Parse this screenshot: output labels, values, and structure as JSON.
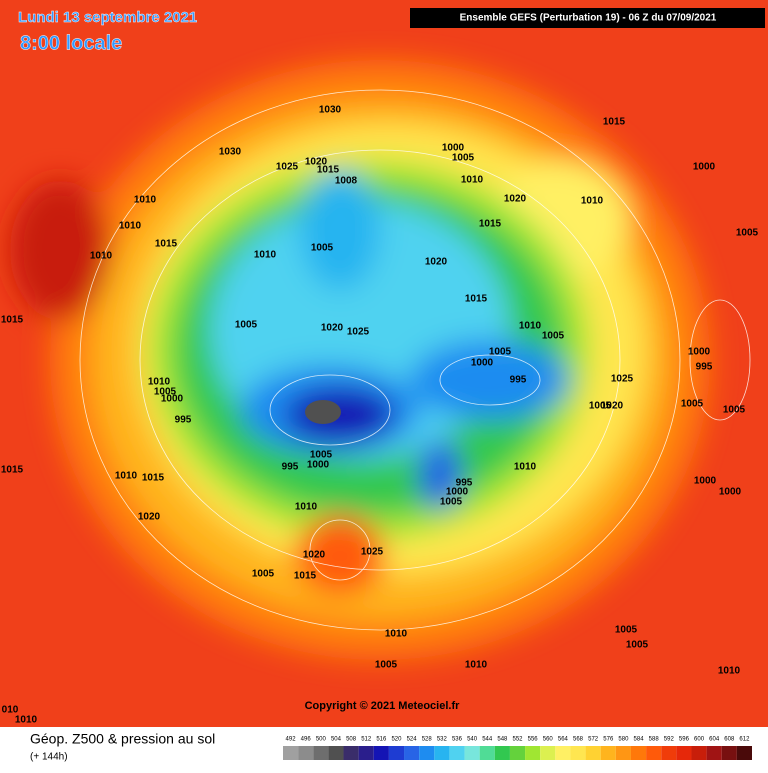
{
  "header": {
    "date": "Lundi 13 septembre 2021",
    "time": "8:00 locale",
    "model": "Ensemble GEFS  (Perturbation 19)  -  06 Z du 07/09/2021"
  },
  "copyright": "Copyright © 2021 Meteociel.fr",
  "footer": {
    "title": "Géop. Z500 & pression au sol",
    "lead": "(+ 144h)"
  },
  "scale": {
    "values": [
      492,
      496,
      500,
      504,
      508,
      512,
      516,
      520,
      524,
      528,
      532,
      536,
      540,
      544,
      548,
      552,
      556,
      560,
      564,
      568,
      572,
      576,
      580,
      584,
      588,
      592,
      596,
      600,
      604,
      608,
      612
    ],
    "colors": [
      "#a0a0a0",
      "#8c8c8c",
      "#6e6e6e",
      "#505050",
      "#3a2d6a",
      "#2a1e8c",
      "#1414b4",
      "#1e3cd2",
      "#2864e6",
      "#1e8cf0",
      "#28b4f0",
      "#50d2f0",
      "#78e6dc",
      "#50dc96",
      "#32c850",
      "#64d23c",
      "#a0e632",
      "#dcf050",
      "#fff064",
      "#ffe650",
      "#ffd232",
      "#ffb41e",
      "#ff9614",
      "#ff780a",
      "#ff5a0a",
      "#f03c0a",
      "#e6280a",
      "#c81e0a",
      "#a01414",
      "#781010",
      "#4a0a0a"
    ]
  },
  "isobars": [
    "1030",
    "1030",
    "1025",
    "1020",
    "1015",
    "1008",
    "1000",
    "1005",
    "1010",
    "1015",
    "1000",
    "1010",
    "1010",
    "1010",
    "1015",
    "1010",
    "1005",
    "1020",
    "1010",
    "1015",
    "1005",
    "1020",
    "1015",
    "1015",
    "1005",
    "1020",
    "1025",
    "1010",
    "1005",
    "1005",
    "1000",
    "995",
    "1000",
    "995",
    "1025",
    "1010",
    "1005",
    "1000",
    "995",
    "1005",
    "1020",
    "1005",
    "1005",
    "1005",
    "1000",
    "995",
    "1010",
    "1015",
    "1010",
    "1015",
    "995",
    "1000",
    "1005",
    "1000",
    "1000",
    "1010",
    "1020",
    "1020",
    "1025",
    "1005",
    "1015",
    "1010",
    "1005",
    "1005",
    "1010",
    "1005",
    "1010",
    "1010",
    "010"
  ]
}
